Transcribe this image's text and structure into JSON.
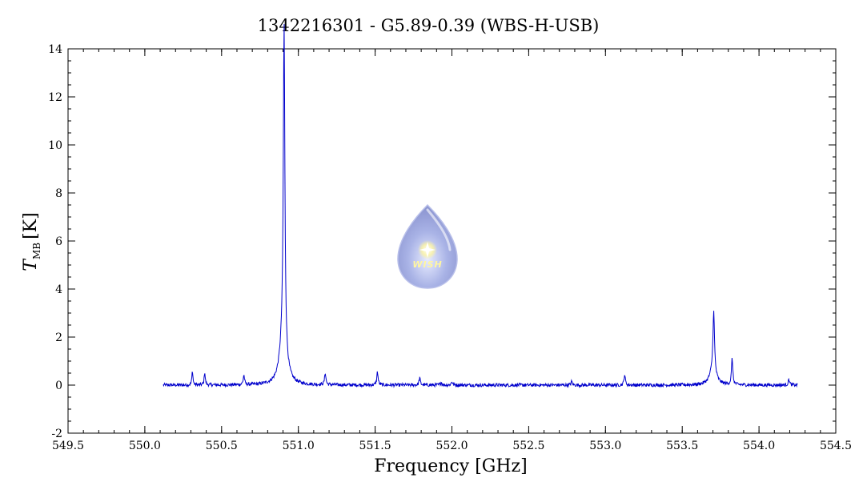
{
  "chart_data": {
    "type": "line",
    "title": "1342216301 - G5.89-0.39 (WBS-H-USB)",
    "xlabel": "Frequency [GHz]",
    "ylabel": "T",
    "ylabel_subscript": "MB",
    "ylabel_unit": "[K]",
    "xlim": [
      549.5,
      554.5
    ],
    "ylim": [
      -2,
      14
    ],
    "x_ticks": [
      "549.5",
      "550.0",
      "550.5",
      "551.0",
      "551.5",
      "552.0",
      "552.5",
      "553.0",
      "553.5",
      "554.0",
      "554.5"
    ],
    "y_ticks": [
      "-2",
      "0",
      "2",
      "4",
      "6",
      "8",
      "10",
      "12",
      "14"
    ],
    "grid": false,
    "legend": "none",
    "series_color": "#0000cc",
    "baseline": {
      "x_start": 550.12,
      "x_end": 554.25,
      "y": 0.0
    },
    "peaks": [
      {
        "x": 550.31,
        "y": 0.6,
        "w": 0.004
      },
      {
        "x": 550.39,
        "y": 0.55,
        "w": 0.004
      },
      {
        "x": 550.645,
        "y": 0.4,
        "w": 0.005
      },
      {
        "x": 550.907,
        "y": 13.4,
        "w": 0.006
      },
      {
        "x": 550.9,
        "y": 1.8,
        "w": 0.025
      },
      {
        "x": 551.175,
        "y": 0.5,
        "w": 0.005
      },
      {
        "x": 551.515,
        "y": 0.55,
        "w": 0.005
      },
      {
        "x": 551.79,
        "y": 0.3,
        "w": 0.005
      },
      {
        "x": 551.93,
        "y": 0.12,
        "w": 0.005
      },
      {
        "x": 552.0,
        "y": 0.15,
        "w": 0.005
      },
      {
        "x": 552.78,
        "y": 0.15,
        "w": 0.005
      },
      {
        "x": 553.125,
        "y": 0.45,
        "w": 0.005
      },
      {
        "x": 553.705,
        "y": 2.5,
        "w": 0.006
      },
      {
        "x": 553.7,
        "y": 0.6,
        "w": 0.025
      },
      {
        "x": 553.825,
        "y": 1.1,
        "w": 0.005
      },
      {
        "x": 554.195,
        "y": 0.25,
        "w": 0.005
      }
    ]
  },
  "logo": {
    "text": "WISH"
  }
}
